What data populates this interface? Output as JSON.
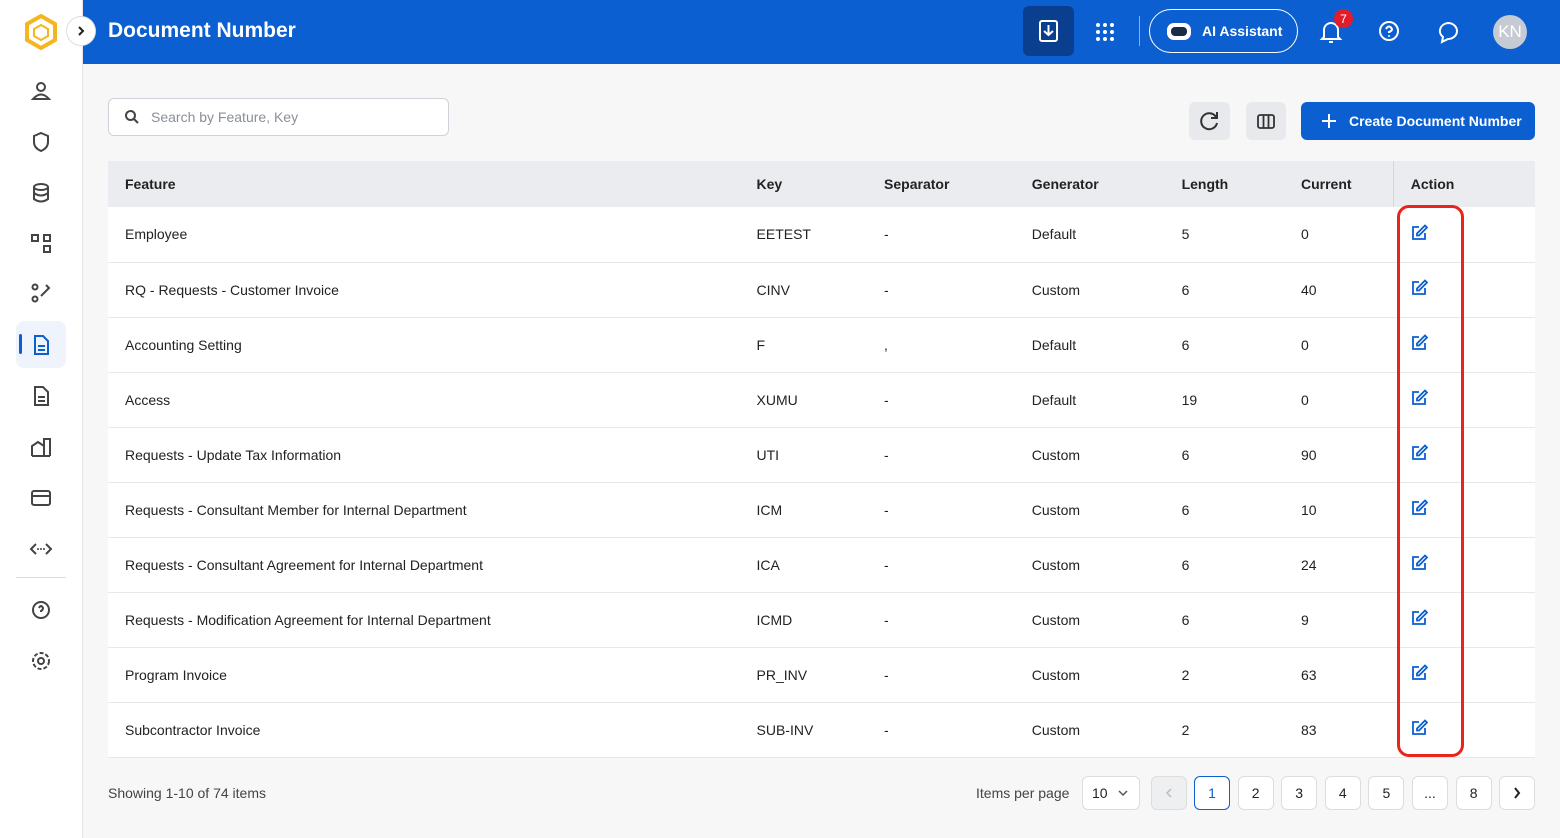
{
  "header": {
    "title": "Document Number",
    "ai_assistant": "AI Assistant",
    "notification_count": 7,
    "avatar": "KN"
  },
  "toolbar": {
    "search_placeholder": "Search by Feature, Key",
    "create_button": "Create Document Number"
  },
  "table": {
    "columns": [
      "Feature",
      "Key",
      "Separator",
      "Generator",
      "Length",
      "Current",
      "Action"
    ],
    "rows": [
      [
        "Employee",
        "EETEST",
        "-",
        "Default",
        5,
        0
      ],
      [
        "RQ - Requests - Customer Invoice",
        "CINV",
        "-",
        "Custom",
        6,
        40
      ],
      [
        "Accounting Setting",
        "F",
        ",",
        "Default",
        6,
        0
      ],
      [
        "Access",
        "XUMU",
        "-",
        "Default",
        19,
        0
      ],
      [
        "Requests - Update Tax Information",
        "UTI",
        "-",
        "Custom",
        6,
        90
      ],
      [
        "Requests - Consultant Member for Internal Department",
        "ICM",
        "-",
        "Custom",
        6,
        10
      ],
      [
        "Requests - Consultant Agreement for Internal Department",
        "ICA",
        "-",
        "Custom",
        6,
        24
      ],
      [
        "Requests - Modification Agreement for Internal Department",
        "ICMD",
        "-",
        "Custom",
        6,
        9
      ],
      [
        "Program Invoice",
        "PR_INV",
        "-",
        "Custom",
        2,
        63
      ],
      [
        "Subcontractor Invoice",
        "SUB-INV",
        "-",
        "Custom",
        2,
        83
      ]
    ]
  },
  "footer": {
    "summary": "Showing 1-10 of 74 items",
    "items_per_page_label": "Items per page",
    "items_per_page": 10,
    "pages": [
      1,
      2,
      3,
      4,
      5,
      "...",
      8
    ],
    "current_page": 1
  }
}
